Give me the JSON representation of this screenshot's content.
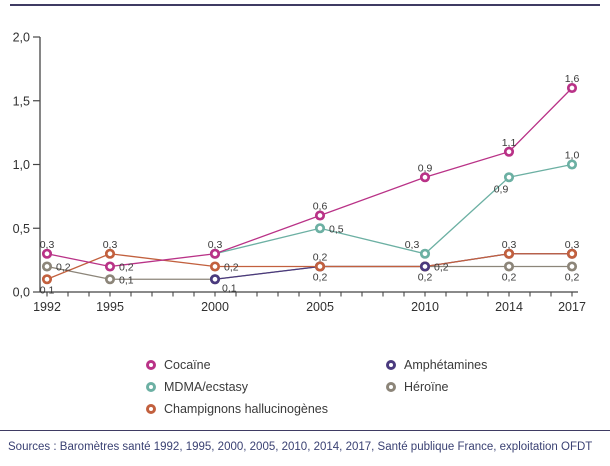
{
  "chart_data": {
    "type": "line",
    "title": "",
    "xlabel": "",
    "ylabel": "",
    "x_years": [
      1992,
      1995,
      2000,
      2005,
      2010,
      2014,
      2017
    ],
    "x_axis_range": [
      1992,
      2017
    ],
    "x_minor_ticks": "every-year",
    "ylim": [
      0,
      2.0
    ],
    "y_tick_step": 0.5,
    "y_tick_labels": [
      "0,0",
      "0,5",
      "1,0",
      "1,5",
      "2,0"
    ],
    "decimal_style": "comma",
    "grid": false,
    "legend_position": "bottom",
    "series": [
      {
        "name": "Héroïne",
        "color": "#8c8579",
        "values": [
          0.2,
          0.1,
          0.1,
          0.2,
          0.2,
          0.2,
          0.2
        ],
        "label_pos": [
          "right",
          "right",
          null,
          "below",
          null,
          "below",
          "below"
        ]
      },
      {
        "name": "Amphétamines",
        "color": "#4a3a7e",
        "values": [
          null,
          null,
          0.1,
          0.2,
          0.2,
          0.3,
          0.3
        ],
        "label_pos": [
          null,
          null,
          "belowright",
          null,
          "right",
          null,
          null
        ]
      },
      {
        "name": "Champignons hallucinogènes",
        "color": "#c2603e",
        "values": [
          0.1,
          0.3,
          0.2,
          0.2,
          0.2,
          0.3,
          0.3
        ],
        "label_pos": [
          "below",
          "above",
          "right",
          "above",
          "below",
          "above",
          "above"
        ]
      },
      {
        "name": "MDMA/ecstasy",
        "color": "#6cb0a3",
        "values": [
          null,
          null,
          0.3,
          0.5,
          0.3,
          0.9,
          1.0
        ],
        "label_pos": [
          null,
          null,
          null,
          "right",
          "aboveleft",
          "belowleft",
          "above"
        ]
      },
      {
        "name": "Cocaïne",
        "color": "#b93287",
        "values": [
          0.3,
          0.2,
          0.3,
          0.6,
          0.9,
          1.1,
          1.6
        ],
        "label_pos": [
          "above",
          "right",
          "above",
          "above",
          "above",
          "above",
          "above"
        ]
      }
    ]
  },
  "legend": {
    "columns": [
      [
        "Cocaïne",
        "MDMA/ecstasy",
        "Champignons hallucinogènes"
      ],
      [
        "Amphétamines",
        "Héroïne"
      ]
    ]
  },
  "source": "Sources : Baromètres santé 1992, 1995, 2000, 2005, 2010, 2014, 2017, Santé publique France, exploitation OFDT",
  "colors": {
    "rule": "#3f3b63",
    "axis": "#454545",
    "value_label_text": "#3a3a3a",
    "source_text": "#3a4173"
  }
}
